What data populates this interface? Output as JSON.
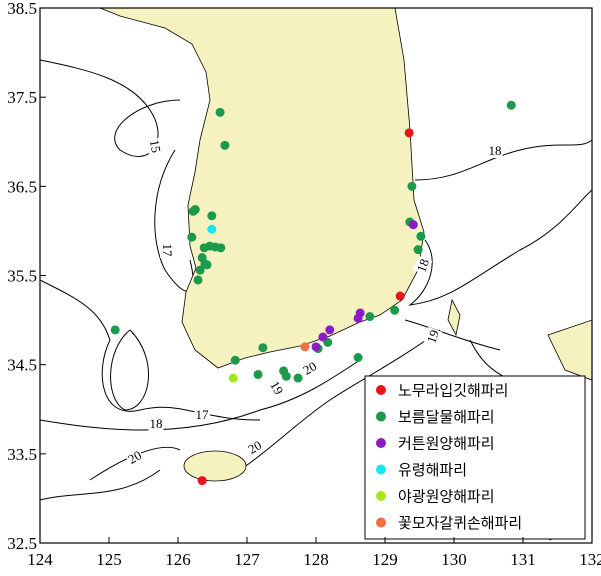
{
  "chart_data": {
    "type": "scatter",
    "xlim": [
      124,
      132
    ],
    "ylim": [
      32.5,
      38.5
    ],
    "xticks": [
      124,
      125,
      126,
      127,
      128,
      129,
      130,
      131,
      132
    ],
    "yticks": [
      32.5,
      33.5,
      34.5,
      35.5,
      36.5,
      37.5,
      38.5
    ],
    "contour_labels": [
      15,
      17,
      17,
      18,
      18,
      18,
      19,
      19,
      20,
      20,
      20
    ],
    "legend": "lower right",
    "series": [
      {
        "name": "노무라입깃해파리",
        "color": "#e8131b",
        "x": [
          129.35,
          129.22,
          126.35
        ],
        "values": [
          37.1,
          35.27,
          33.2
        ]
      },
      {
        "name": "보름달물해파리",
        "color": "#1a9a4a",
        "x": [
          130.83,
          126.61,
          126.68,
          129.39,
          126.25,
          126.22,
          126.49,
          129.36,
          129.52,
          129.48,
          126.2,
          126.38,
          126.46,
          126.54,
          126.62,
          126.35,
          126.39,
          126.42,
          126.32,
          126.29,
          125.09,
          127.23,
          127.57,
          127.53,
          127.74,
          128.03,
          128.17,
          128.61,
          128.78,
          129.14,
          127.16,
          126.83
        ],
        "values": [
          37.41,
          37.33,
          36.96,
          36.5,
          36.24,
          36.22,
          36.17,
          36.1,
          35.94,
          35.79,
          35.93,
          35.81,
          35.83,
          35.82,
          35.81,
          35.7,
          35.63,
          35.62,
          35.56,
          35.45,
          34.89,
          34.69,
          34.37,
          34.43,
          34.35,
          34.68,
          34.75,
          34.58,
          35.04,
          35.11,
          34.39,
          34.55
        ]
      },
      {
        "name": "커튼원양해파리",
        "color": "#8c1bc4",
        "x": [
          129.41,
          128.2,
          128.1,
          128.64,
          128.61,
          128.0
        ],
        "values": [
          36.07,
          34.89,
          34.81,
          35.08,
          35.02,
          34.7
        ]
      },
      {
        "name": "유령해파리",
        "color": "#18e6f0",
        "x": [
          126.49
        ],
        "values": [
          36.02
        ]
      },
      {
        "name": "야광원양해파리",
        "color": "#a4e61c",
        "x": [
          126.8
        ],
        "values": [
          34.35
        ]
      },
      {
        "name": "꽃모자갈퀴손해파리",
        "color": "#f07040",
        "x": [
          127.84
        ],
        "values": [
          34.7
        ]
      }
    ]
  }
}
